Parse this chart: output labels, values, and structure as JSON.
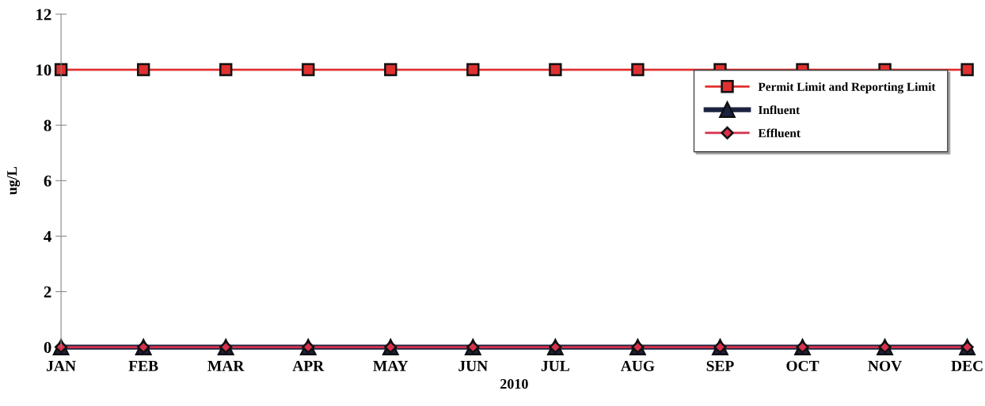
{
  "chart_data": {
    "type": "line",
    "xlabel": "2010",
    "ylabel": "ug/L",
    "categories": [
      "JAN",
      "FEB",
      "MAR",
      "APR",
      "MAY",
      "JUN",
      "JUL",
      "AUG",
      "SEP",
      "OCT",
      "NOV",
      "DEC"
    ],
    "series": [
      {
        "name": "Permit Limit and Reporting Limit",
        "color": "#e03030",
        "marker": "square",
        "values": [
          10,
          10,
          10,
          10,
          10,
          10,
          10,
          10,
          10,
          10,
          10,
          10
        ]
      },
      {
        "name": "Influent",
        "color": "#1c2340",
        "marker": "triangle",
        "values": [
          0,
          0,
          0,
          0,
          0,
          0,
          0,
          0,
          0,
          0,
          0,
          0
        ]
      },
      {
        "name": "Effluent",
        "color": "#d8304c",
        "marker": "diamond",
        "values": [
          0,
          0,
          0,
          0,
          0,
          0,
          0,
          0,
          0,
          0,
          0,
          0
        ]
      }
    ],
    "ylim": [
      0,
      12
    ],
    "yticks": [
      0,
      2,
      4,
      6,
      8,
      10,
      12
    ],
    "grid": false,
    "legend": "top right",
    "line_style": "solid"
  }
}
